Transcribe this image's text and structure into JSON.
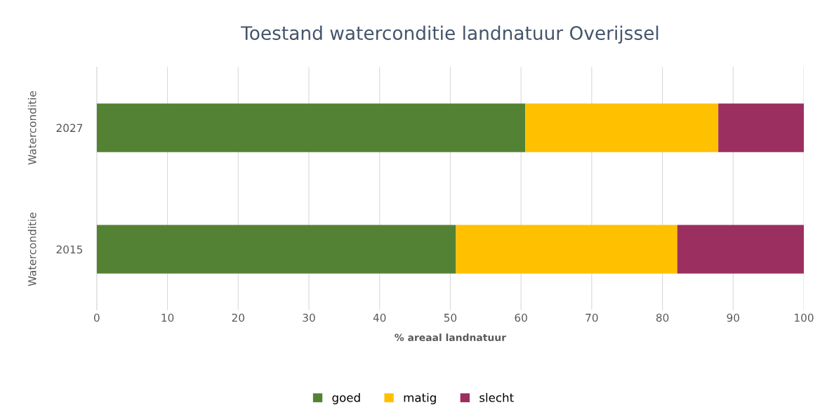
{
  "chart_data": {
    "type": "bar",
    "title": "Toestand waterconditie landnatuur Overijssel",
    "xlabel": "% areaal landnatuur",
    "orientation": "horizontal",
    "stacked": true,
    "categories": [
      "2027",
      "2015"
    ],
    "annotations": [
      "Waterconditie",
      "Waterconditie"
    ],
    "series": [
      {
        "name": "goed",
        "color": "#548235",
        "values": [
          60.6,
          50.8
        ]
      },
      {
        "name": "matig",
        "color": "#ffc000",
        "values": [
          27.3,
          31.3
        ]
      },
      {
        "name": "slecht",
        "color": "#9b2f5f",
        "values": [
          12.1,
          17.9
        ]
      }
    ],
    "xlim": [
      0,
      100
    ],
    "xticks": [
      0,
      10,
      20,
      30,
      40,
      50,
      60,
      70,
      80,
      90,
      100
    ],
    "grid": "x",
    "legend": "bottom"
  }
}
